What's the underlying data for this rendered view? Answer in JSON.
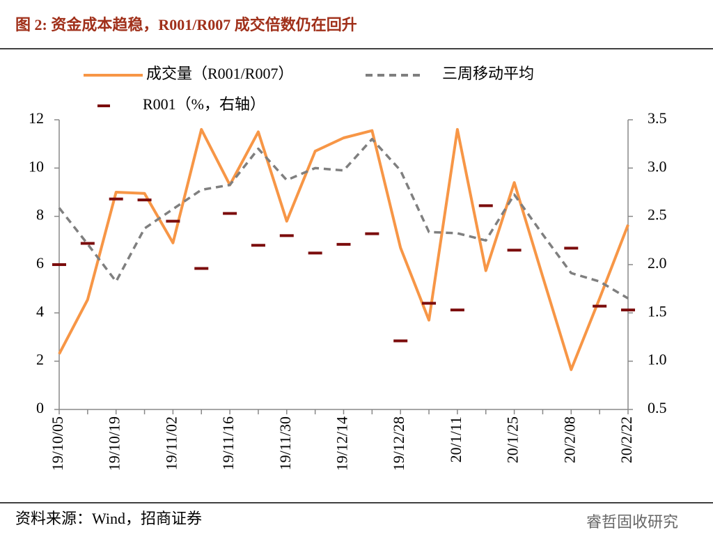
{
  "chart_data": {
    "type": "line",
    "title": "图 2:  资金成本趋稳，R001/R007 成交倍数仍在回升",
    "categories": [
      "19/10/05",
      null,
      "19/10/19",
      null,
      "19/11/02",
      null,
      "19/11/16",
      null,
      "19/11/30",
      null,
      "19/12/14",
      null,
      "19/12/28",
      null,
      "20/1/11",
      null,
      "20/1/25",
      null,
      "20/2/08",
      null,
      "20/2/22"
    ],
    "series": [
      {
        "name": "成交量（R001/R007）",
        "color": "#f79646",
        "style": "solid",
        "values": [
          2.3,
          4.55,
          9.0,
          8.95,
          6.9,
          11.6,
          9.3,
          11.5,
          7.8,
          10.7,
          11.25,
          11.55,
          6.7,
          3.7,
          11.6,
          5.75,
          9.4,
          5.5,
          1.65,
          4.6,
          7.65
        ]
      },
      {
        "name": "三周移动平均",
        "color": "#7f7f7f",
        "style": "dashed",
        "values": [
          8.35,
          6.85,
          5.3,
          7.5,
          8.3,
          9.1,
          9.3,
          10.8,
          9.5,
          10.0,
          9.9,
          11.2,
          9.9,
          7.35,
          7.3,
          7.0,
          8.9,
          7.25,
          5.65,
          5.3,
          4.6
        ]
      },
      {
        "name": "R001（%，右轴）",
        "color": "#7b0c0c",
        "style": "dash-marker",
        "axis": "y2",
        "values": [
          2.0,
          2.22,
          2.68,
          2.67,
          2.45,
          1.96,
          2.53,
          2.2,
          2.3,
          2.12,
          2.21,
          2.32,
          1.21,
          1.6,
          1.53,
          2.61,
          2.15,
          null,
          2.17,
          1.57,
          1.53
        ]
      }
    ],
    "ylim": [
      0,
      12
    ],
    "yticks": [
      0,
      2,
      4,
      6,
      8,
      10,
      12
    ],
    "y2lim": [
      0.5,
      3.5
    ],
    "y2ticks": [
      0.5,
      {
        "value": 1,
        "label": "1.0"
      },
      1.5,
      {
        "value": 2,
        "label": "2.0"
      },
      2.5,
      {
        "value": 3,
        "label": "3.0"
      },
      3.5
    ],
    "source": "资料来源：Wind，招商证券",
    "watermark": "睿哲固收研究"
  }
}
